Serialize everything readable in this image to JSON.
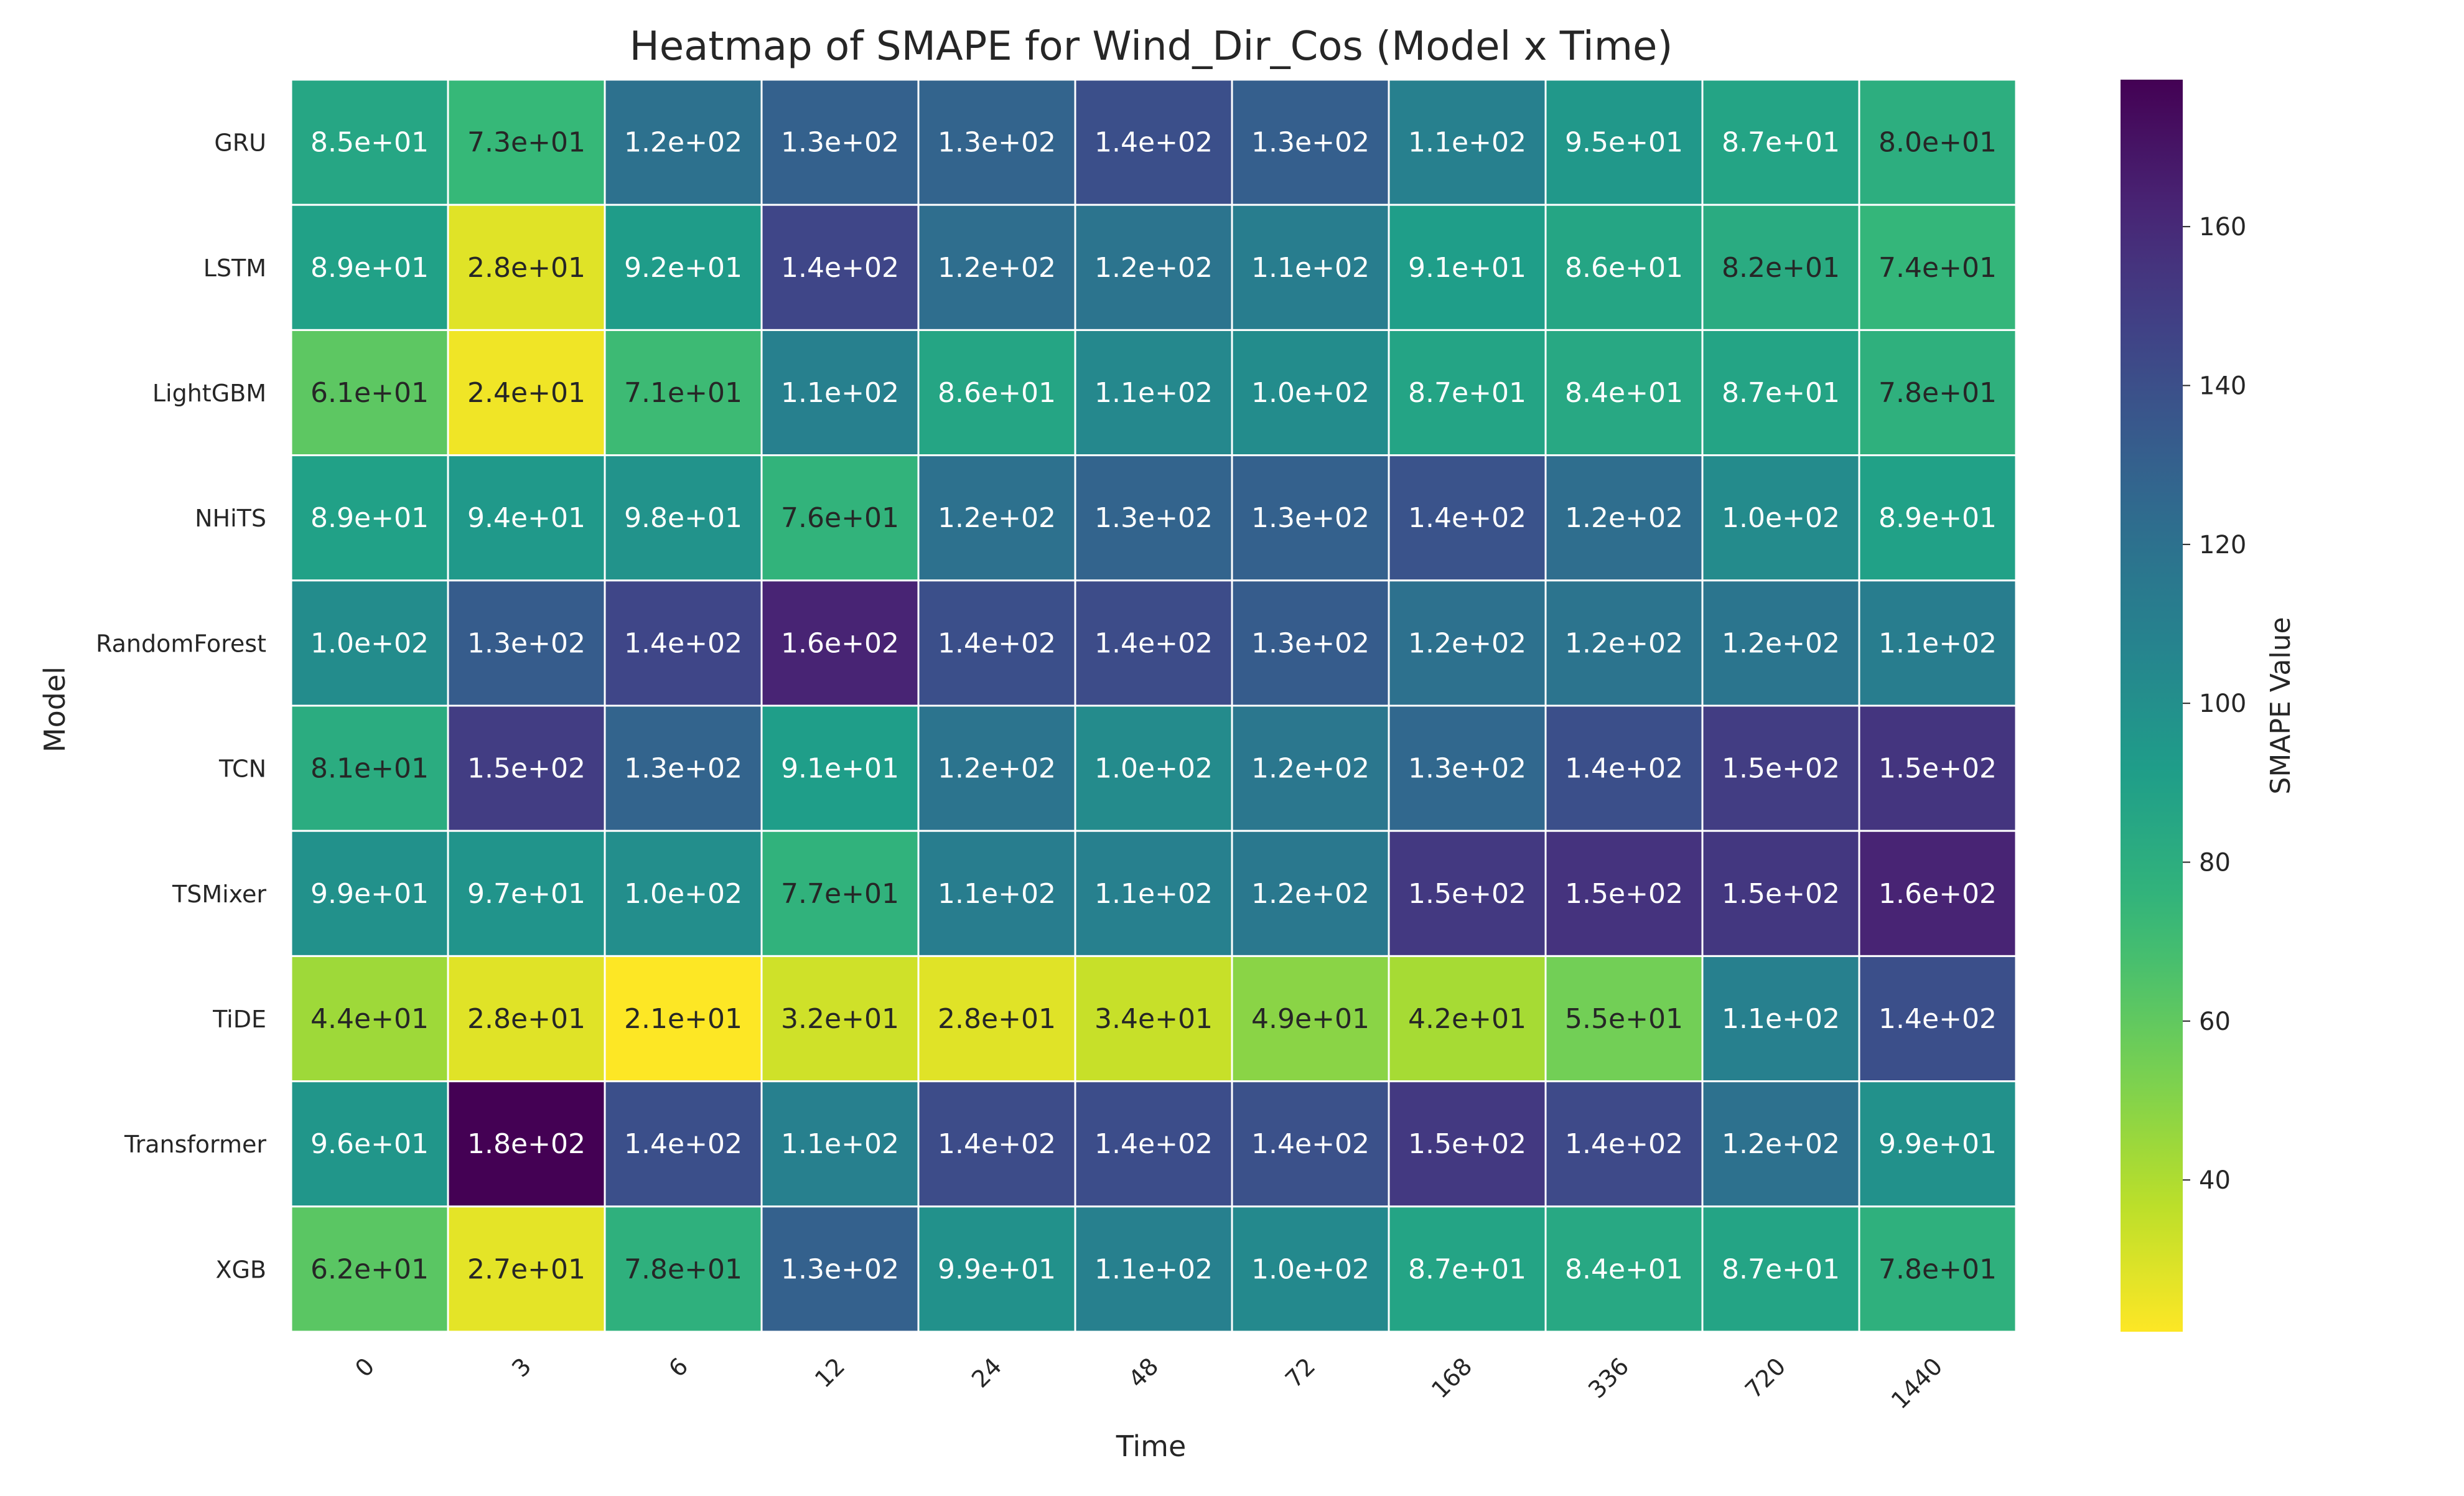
{
  "chart_data": {
    "type": "heatmap",
    "title": "Heatmap of SMAPE for Wind_Dir_Cos (Model x Time)",
    "xlabel": "Time",
    "ylabel": "Model",
    "colorbar_label": "SMAPE Value",
    "colormap": "viridis_r",
    "colorbar_range": [
      20.9,
      178.5
    ],
    "colorbar_ticks": [
      40,
      60,
      80,
      100,
      120,
      140,
      160
    ],
    "x": [
      "0",
      "3",
      "6",
      "12",
      "24",
      "48",
      "72",
      "168",
      "336",
      "720",
      "1440"
    ],
    "y": [
      "GRU",
      "LSTM",
      "LightGBM",
      "NHiTS",
      "RandomForest",
      "TCN",
      "TSMixer",
      "TiDE",
      "Transformer",
      "XGB"
    ],
    "values": [
      [
        85,
        73,
        120,
        130,
        128,
        140,
        131,
        110,
        95,
        87,
        80
      ],
      [
        89,
        28,
        92,
        145,
        122,
        118,
        112,
        91,
        86,
        82,
        74
      ],
      [
        61,
        24,
        71,
        110,
        86,
        105,
        102,
        87,
        84,
        87,
        78
      ],
      [
        89,
        94,
        98,
        76,
        120,
        128,
        130,
        138,
        122,
        103,
        89
      ],
      [
        102,
        133,
        145,
        163,
        140,
        142,
        133,
        120,
        118,
        117,
        112
      ],
      [
        81,
        150,
        128,
        91,
        118,
        103,
        116,
        126,
        140,
        150,
        154
      ],
      [
        99,
        97,
        101,
        77,
        112,
        110,
        115,
        152,
        155,
        153,
        163
      ],
      [
        44,
        28,
        21,
        32,
        28,
        34,
        49,
        42,
        55,
        110,
        140
      ],
      [
        96,
        178.5,
        140,
        110,
        142,
        141,
        139,
        152,
        143,
        120,
        99
      ],
      [
        62,
        27,
        78,
        130,
        99,
        110,
        104,
        87,
        84,
        87,
        78
      ]
    ],
    "cell_labels": [
      [
        "8.5e+01",
        "7.3e+01",
        "1.2e+02",
        "1.3e+02",
        "1.3e+02",
        "1.4e+02",
        "1.3e+02",
        "1.1e+02",
        "9.5e+01",
        "8.7e+01",
        "8.0e+01"
      ],
      [
        "8.9e+01",
        "2.8e+01",
        "9.2e+01",
        "1.4e+02",
        "1.2e+02",
        "1.2e+02",
        "1.1e+02",
        "9.1e+01",
        "8.6e+01",
        "8.2e+01",
        "7.4e+01"
      ],
      [
        "6.1e+01",
        "2.4e+01",
        "7.1e+01",
        "1.1e+02",
        "8.6e+01",
        "1.1e+02",
        "1.0e+02",
        "8.7e+01",
        "8.4e+01",
        "8.7e+01",
        "7.8e+01"
      ],
      [
        "8.9e+01",
        "9.4e+01",
        "9.8e+01",
        "7.6e+01",
        "1.2e+02",
        "1.3e+02",
        "1.3e+02",
        "1.4e+02",
        "1.2e+02",
        "1.0e+02",
        "8.9e+01"
      ],
      [
        "1.0e+02",
        "1.3e+02",
        "1.4e+02",
        "1.6e+02",
        "1.4e+02",
        "1.4e+02",
        "1.3e+02",
        "1.2e+02",
        "1.2e+02",
        "1.2e+02",
        "1.1e+02"
      ],
      [
        "8.1e+01",
        "1.5e+02",
        "1.3e+02",
        "9.1e+01",
        "1.2e+02",
        "1.0e+02",
        "1.2e+02",
        "1.3e+02",
        "1.4e+02",
        "1.5e+02",
        "1.5e+02"
      ],
      [
        "9.9e+01",
        "9.7e+01",
        "1.0e+02",
        "7.7e+01",
        "1.1e+02",
        "1.1e+02",
        "1.2e+02",
        "1.5e+02",
        "1.5e+02",
        "1.5e+02",
        "1.6e+02"
      ],
      [
        "4.4e+01",
        "2.8e+01",
        "2.1e+01",
        "3.2e+01",
        "2.8e+01",
        "3.4e+01",
        "4.9e+01",
        "4.2e+01",
        "5.5e+01",
        "1.1e+02",
        "1.4e+02"
      ],
      [
        "9.6e+01",
        "1.8e+02",
        "1.4e+02",
        "1.1e+02",
        "1.4e+02",
        "1.4e+02",
        "1.4e+02",
        "1.5e+02",
        "1.4e+02",
        "1.2e+02",
        "9.9e+01"
      ],
      [
        "6.2e+01",
        "2.7e+01",
        "7.8e+01",
        "1.3e+02",
        "9.9e+01",
        "1.1e+02",
        "1.0e+02",
        "8.7e+01",
        "8.4e+01",
        "8.7e+01",
        "7.8e+01"
      ]
    ]
  }
}
